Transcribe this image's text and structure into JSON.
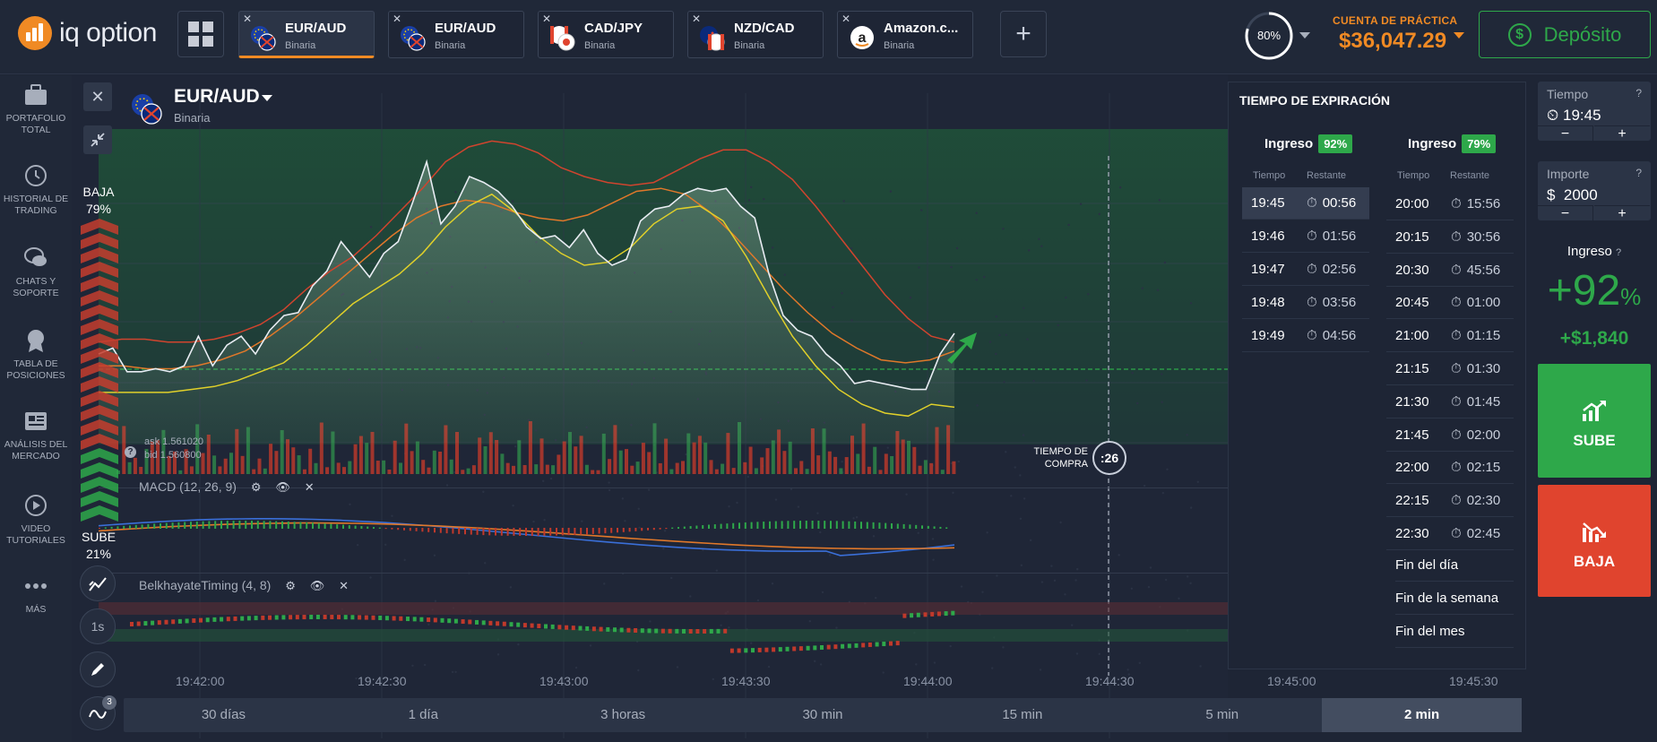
{
  "brand": {
    "name": "iq option"
  },
  "tabs": [
    {
      "pair": "EUR/AUD",
      "type": "Binaria",
      "active": true,
      "icon": "eur-aud-flag-icon"
    },
    {
      "pair": "EUR/AUD",
      "type": "Binaria",
      "active": false,
      "icon": "eur-aud-flag-icon"
    },
    {
      "pair": "CAD/JPY",
      "type": "Binaria",
      "active": false,
      "icon": "cad-jpy-flag-icon"
    },
    {
      "pair": "NZD/CAD",
      "type": "Binaria",
      "active": false,
      "icon": "nzd-cad-flag-icon"
    },
    {
      "pair": "Amazon.c...",
      "type": "Binaria",
      "active": false,
      "icon": "amazon-logo-icon"
    }
  ],
  "header": {
    "progress_label": "80%",
    "progress_value": 0.8,
    "account_label": "CUENTA DE PRÁCTICA",
    "balance": "$36,047.29",
    "deposit_label": "Depósito"
  },
  "sidebar": {
    "items": [
      {
        "label1": "PORTAFOLIO",
        "label2": "TOTAL",
        "icon": "briefcase-icon"
      },
      {
        "label1": "HISTORIAL DE",
        "label2": "TRADING",
        "icon": "history-icon"
      },
      {
        "label1": "CHATS Y",
        "label2": "SOPORTE",
        "icon": "chat-icon"
      },
      {
        "label1": "TABLA DE",
        "label2": "POSICIONES",
        "icon": "medal-icon"
      },
      {
        "label1": "ANÁLISIS DEL",
        "label2": "MERCADO",
        "icon": "newspaper-icon"
      },
      {
        "label1": "VIDEO",
        "label2": "TUTORIALES",
        "icon": "play-icon"
      },
      {
        "label1": "MÁS",
        "label2": "",
        "icon": "more-dots-icon"
      }
    ]
  },
  "asset": {
    "name": "EUR/AUD",
    "type": "Binaria"
  },
  "sentiment": {
    "baja_label": "BAJA",
    "baja_pct": "79%",
    "sube_label": "SUBE",
    "sube_pct": "21%"
  },
  "ask_bid": {
    "ask": "ask 1.561020",
    "bid": "bid 1.560800"
  },
  "indicators": {
    "macd": "MACD (12, 26, 9)",
    "belkhayate": "BelkhayateTiming (4, 8)"
  },
  "tools": {
    "interval_label": "1s",
    "badge_count": "3"
  },
  "purchase_time": {
    "label1": "TIEMPO DE",
    "label2": "COMPRA",
    "countdown": ":26"
  },
  "time_axis": [
    "19:42:00",
    "19:42:30",
    "19:43:00",
    "19:43:30",
    "19:44:00",
    "19:44:30",
    "19:45:00",
    "19:45:30"
  ],
  "timeframes": [
    {
      "label": "30 días",
      "selected": false
    },
    {
      "label": "1 día",
      "selected": false
    },
    {
      "label": "3 horas",
      "selected": false
    },
    {
      "label": "30 min",
      "selected": false
    },
    {
      "label": "15 min",
      "selected": false
    },
    {
      "label": "5 min",
      "selected": false
    },
    {
      "label": "2 min",
      "selected": true
    }
  ],
  "expiration": {
    "title": "TIEMPO DE EXPIRACIÓN",
    "col1": {
      "income_label": "Ingreso",
      "pct": "92%",
      "time_hdr": "Tiempo",
      "rem_hdr": "Restante",
      "rows": [
        {
          "time": "19:45",
          "remaining": "00:56",
          "selected": true
        },
        {
          "time": "19:46",
          "remaining": "01:56"
        },
        {
          "time": "19:47",
          "remaining": "02:56"
        },
        {
          "time": "19:48",
          "remaining": "03:56"
        },
        {
          "time": "19:49",
          "remaining": "04:56"
        }
      ]
    },
    "col2": {
      "income_label": "Ingreso",
      "pct": "79%",
      "time_hdr": "Tiempo",
      "rem_hdr": "Restante",
      "rows": [
        {
          "time": "20:00",
          "remaining": "15:56"
        },
        {
          "time": "20:15",
          "remaining": "30:56"
        },
        {
          "time": "20:30",
          "remaining": "45:56"
        },
        {
          "time": "20:45",
          "remaining": "01:00"
        },
        {
          "time": "21:00",
          "remaining": "01:15"
        },
        {
          "time": "21:15",
          "remaining": "01:30"
        },
        {
          "time": "21:30",
          "remaining": "01:45"
        },
        {
          "time": "21:45",
          "remaining": "02:00"
        },
        {
          "time": "22:00",
          "remaining": "02:15"
        },
        {
          "time": "22:15",
          "remaining": "02:30"
        },
        {
          "time": "22:30",
          "remaining": "02:45"
        }
      ],
      "extra": [
        "Fin del día",
        "Fin de la semana",
        "Fin del mes"
      ]
    }
  },
  "trade": {
    "time_label": "Tiempo",
    "time_value": "19:45",
    "amount_label": "Importe",
    "amount_value": "$  2000",
    "help": "?",
    "minus": "−",
    "plus": "+",
    "income_label": "Ingreso",
    "income_pct_num": "+92",
    "income_pct_sign": "%",
    "profit": "+$1,840",
    "sube_label": "SUBE",
    "baja_label": "BAJA"
  },
  "colors": {
    "accent": "#f08a24",
    "up": "#2ea84a",
    "down": "#e0442e",
    "bg": "#1e2535"
  },
  "chart_data": {
    "type": "line",
    "x_labels": [
      "19:42:00",
      "19:42:30",
      "19:43:00",
      "19:43:30",
      "19:44:00",
      "19:44:30",
      "19:45:00",
      "19:45:30"
    ],
    "price": [
      0.3,
      0.32,
      0.24,
      0.24,
      0.25,
      0.24,
      0.26,
      0.36,
      0.26,
      0.33,
      0.36,
      0.3,
      0.38,
      0.43,
      0.44,
      0.53,
      0.58,
      0.68,
      0.62,
      0.56,
      0.64,
      0.68,
      0.81,
      0.95,
      0.74,
      0.8,
      0.9,
      0.88,
      0.85,
      0.8,
      0.73,
      0.69,
      0.7,
      0.66,
      0.72,
      0.64,
      0.6,
      0.62,
      0.75,
      0.79,
      0.8,
      0.84,
      0.86,
      0.85,
      0.86,
      0.8,
      0.76,
      0.57,
      0.43,
      0.38,
      0.36,
      0.3,
      0.26,
      0.2,
      0.21,
      0.2,
      0.19,
      0.18,
      0.18,
      0.3,
      0.37
    ],
    "band_upper": [
      0.34,
      0.35,
      0.35,
      0.34,
      0.34,
      0.35,
      0.37,
      0.4,
      0.45,
      0.52,
      0.58,
      0.63,
      0.7,
      0.78,
      0.86,
      0.95,
      1.0,
      1.02,
      1.01,
      0.98,
      0.93,
      0.9,
      0.88,
      0.87,
      0.88,
      0.92,
      0.96,
      0.99,
      0.99,
      0.95,
      0.89,
      0.8,
      0.7,
      0.6,
      0.5,
      0.42,
      0.36,
      0.34
    ],
    "band_mid": [
      0.26,
      0.26,
      0.25,
      0.25,
      0.26,
      0.28,
      0.31,
      0.36,
      0.42,
      0.49,
      0.56,
      0.63,
      0.7,
      0.76,
      0.8,
      0.82,
      0.81,
      0.78,
      0.76,
      0.75,
      0.77,
      0.81,
      0.85,
      0.86,
      0.84,
      0.78,
      0.7,
      0.61,
      0.52,
      0.44,
      0.37,
      0.32,
      0.28,
      0.27,
      0.28,
      0.31
    ],
    "band_lower": [
      0.17,
      0.17,
      0.17,
      0.17,
      0.18,
      0.19,
      0.21,
      0.24,
      0.27,
      0.33,
      0.4,
      0.47,
      0.52,
      0.57,
      0.64,
      0.73,
      0.8,
      0.84,
      0.78,
      0.7,
      0.64,
      0.6,
      0.61,
      0.66,
      0.74,
      0.79,
      0.8,
      0.75,
      0.63,
      0.49,
      0.36,
      0.26,
      0.18,
      0.13,
      0.1,
      0.09,
      0.13,
      0.12
    ]
  }
}
